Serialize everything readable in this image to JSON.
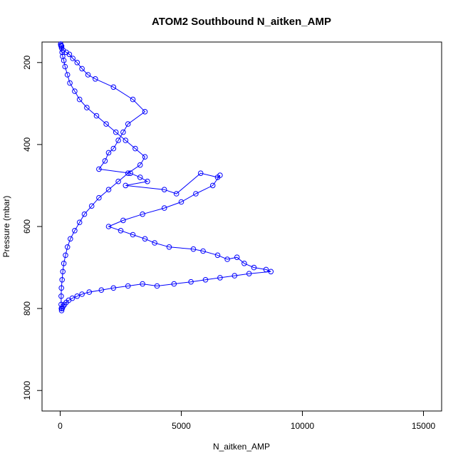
{
  "chart_data": {
    "type": "scatter",
    "title": "ATOM2 Southbound N_aitken_AMP",
    "xlabel": "N_aitken_AMP",
    "ylabel": "Pressure (mbar)",
    "xlim": [
      0,
      15000
    ],
    "ylim": [
      1050,
      150
    ],
    "y_reversed": true,
    "x_ticks": [
      0,
      5000,
      10000,
      15000
    ],
    "y_ticks": [
      200,
      400,
      600,
      800,
      1000
    ],
    "grid": false,
    "marker": "open-circle",
    "connected_by_lines": true,
    "series_color": "#0000ff",
    "series": [
      {
        "x": [
          60,
          120,
          250,
          380,
          520,
          700,
          900,
          1150,
          1450,
          2200,
          3000,
          3500,
          2800,
          2600,
          2400,
          2200,
          2000,
          1850,
          1600,
          2900,
          3300,
          3600,
          2700,
          4300,
          4800,
          5800,
          6500,
          6600,
          6300,
          5600,
          5000,
          4300,
          3400,
          2600,
          2000,
          2500,
          3000,
          3500,
          3900,
          4500,
          5500,
          5900,
          6500,
          6900,
          7300,
          7600,
          8000,
          8500,
          8700,
          7800,
          7200,
          6600,
          6000,
          5400,
          4700,
          4000,
          3400,
          2800,
          2200,
          1700,
          1200,
          900,
          700,
          500,
          350,
          250,
          180,
          120,
          80,
          60,
          50,
          40,
          40,
          50,
          80,
          110,
          150,
          220,
          300,
          420,
          600,
          800,
          1000,
          1300,
          1600,
          2000,
          2400,
          2800,
          3300,
          3500,
          3100,
          2700,
          2300,
          1900,
          1500,
          1100,
          800,
          600,
          400,
          300,
          200,
          150,
          100,
          80,
          60,
          40,
          30,
          20
        ],
        "y": [
          160,
          170,
          175,
          180,
          190,
          200,
          215,
          230,
          240,
          260,
          290,
          320,
          350,
          370,
          390,
          410,
          420,
          440,
          460,
          470,
          480,
          490,
          500,
          510,
          520,
          470,
          480,
          475,
          500,
          520,
          540,
          555,
          570,
          585,
          600,
          610,
          620,
          630,
          640,
          650,
          655,
          660,
          670,
          680,
          675,
          690,
          700,
          705,
          710,
          715,
          720,
          725,
          730,
          735,
          740,
          745,
          740,
          745,
          750,
          755,
          760,
          765,
          770,
          775,
          780,
          785,
          790,
          795,
          800,
          805,
          800,
          790,
          770,
          750,
          730,
          710,
          690,
          670,
          650,
          630,
          610,
          590,
          570,
          550,
          530,
          510,
          490,
          470,
          450,
          430,
          410,
          390,
          370,
          350,
          330,
          310,
          290,
          270,
          250,
          230,
          210,
          195,
          185,
          175,
          165,
          160,
          158,
          155
        ]
      }
    ]
  }
}
